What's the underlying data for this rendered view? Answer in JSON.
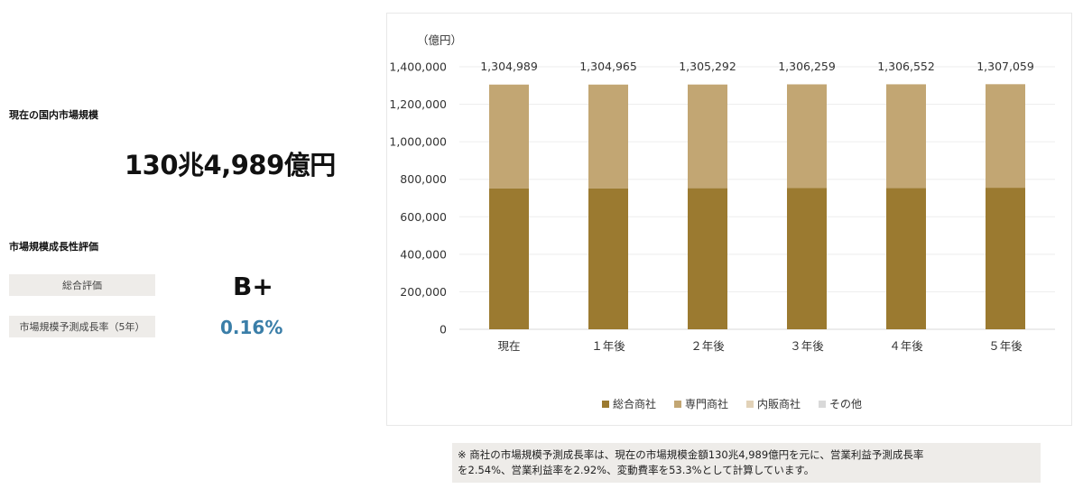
{
  "summary": {
    "market_size_label": "現在の国内市場規模",
    "market_size_value": "130兆4,989億円",
    "growth_section_label": "市場規模成長性評価",
    "overall_label": "総合評価",
    "overall_value": "B+",
    "growth_rate_label": "市場規模予測成長率（5年）",
    "growth_rate_value": "0.16%"
  },
  "colors": {
    "general_trading": "#9b7a30",
    "specialized_trading": "#c2a673",
    "domestic_sales": "#e2d2b8",
    "other": "#d9d9d9",
    "growth_rate_text": "#3a7ea8"
  },
  "footnote": {
    "line1": "※ 商社の市場規模予測成長率は、現在の市場規模金額130兆4,989億円を元に、営業利益予測成長率",
    "line2": "を2.54%、営業利益率を2.92%、変動費率を53.3%として計算しています。"
  },
  "chart_data": {
    "type": "bar",
    "stacked": true,
    "unit_label": "（億円）",
    "categories": [
      "現在",
      "１年後",
      "２年後",
      "３年後",
      "４年後",
      "５年後"
    ],
    "series": [
      {
        "name": "総合商社",
        "color": "#9b7a30",
        "values": [
          752000,
          752000,
          752500,
          753000,
          754000,
          755000
        ]
      },
      {
        "name": "専門商社",
        "color": "#c2a673",
        "values": [
          552989,
          552965,
          552792,
          553259,
          552552,
          552059
        ]
      },
      {
        "name": "内販商社",
        "color": "#e2d2b8",
        "values": [
          0,
          0,
          0,
          0,
          0,
          0
        ]
      },
      {
        "name": "その他",
        "color": "#d9d9d9",
        "values": [
          0,
          0,
          0,
          0,
          0,
          0
        ]
      }
    ],
    "totals": [
      1304989,
      1304965,
      1305292,
      1306259,
      1306552,
      1307059
    ],
    "total_labels": [
      "1,304,989",
      "1,304,965",
      "1,305,292",
      "1,306,259",
      "1,306,552",
      "1,307,059"
    ],
    "yticks": [
      0,
      200000,
      400000,
      600000,
      800000,
      1000000,
      1200000,
      1400000
    ],
    "ytick_labels": [
      "0",
      "200,000",
      "400,000",
      "600,000",
      "800,000",
      "1,000,000",
      "1,200,000",
      "1,400,000"
    ],
    "ylim": [
      0,
      1400000
    ],
    "grid": true,
    "legend_position": "bottom"
  }
}
